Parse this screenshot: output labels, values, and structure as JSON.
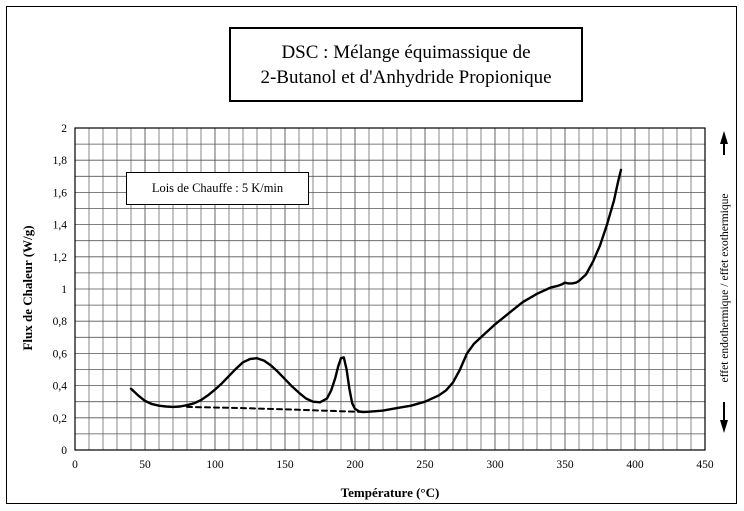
{
  "chart_data": {
    "type": "line",
    "title_line1": "DSC : Mélange équimassique de",
    "title_line2": "2-Butanol et d'Anhydride Propionique",
    "legend_note": "Lois de Chauffe : 5 K/min",
    "xlabel": "Température (°C)",
    "ylabel": "Flux de Chaleur (W/g)",
    "side_label_left": "effet endothermique",
    "side_label_right": "effet exothermique",
    "xlim": [
      0,
      450
    ],
    "ylim": [
      0,
      2
    ],
    "x_ticks": [
      "0",
      "50",
      "100",
      "150",
      "200",
      "250",
      "300",
      "350",
      "400",
      "450"
    ],
    "y_ticks": [
      "0",
      "0,2",
      "0,4",
      "0,6",
      "0,8",
      "1",
      "1,2",
      "1,4",
      "1,6",
      "1,8",
      "2"
    ],
    "grid": true,
    "series": [
      {
        "style": "solid",
        "color": "#000000",
        "x": [
          40,
          45,
          50,
          55,
          60,
          65,
          70,
          75,
          80,
          85,
          90,
          95,
          100,
          105,
          110,
          115,
          120,
          125,
          130,
          135,
          140,
          145,
          150,
          155,
          160,
          165,
          170,
          175,
          180,
          183,
          186,
          188,
          190,
          192,
          194,
          196,
          198,
          200,
          203,
          206,
          210,
          220,
          230,
          240,
          250,
          260,
          265,
          270,
          275,
          280,
          285,
          290,
          300,
          310,
          320,
          330,
          340,
          345,
          348,
          350,
          352,
          355,
          358,
          360,
          365,
          370,
          375,
          380,
          385,
          388,
          390
        ],
        "y": [
          0.38,
          0.34,
          0.305,
          0.285,
          0.275,
          0.27,
          0.268,
          0.27,
          0.278,
          0.29,
          0.31,
          0.34,
          0.375,
          0.415,
          0.46,
          0.505,
          0.545,
          0.565,
          0.57,
          0.555,
          0.525,
          0.485,
          0.44,
          0.395,
          0.355,
          0.32,
          0.3,
          0.296,
          0.32,
          0.37,
          0.45,
          0.52,
          0.57,
          0.575,
          0.5,
          0.38,
          0.29,
          0.255,
          0.24,
          0.236,
          0.238,
          0.245,
          0.26,
          0.275,
          0.3,
          0.34,
          0.37,
          0.42,
          0.5,
          0.6,
          0.66,
          0.7,
          0.78,
          0.85,
          0.92,
          0.97,
          1.01,
          1.02,
          1.03,
          1.04,
          1.035,
          1.035,
          1.04,
          1.05,
          1.09,
          1.17,
          1.27,
          1.4,
          1.55,
          1.67,
          1.74
        ]
      },
      {
        "style": "dashed",
        "color": "#000000",
        "x": [
          80,
          120,
          160,
          200,
          207
        ],
        "y": [
          0.268,
          0.26,
          0.25,
          0.238,
          0.236
        ]
      }
    ]
  }
}
